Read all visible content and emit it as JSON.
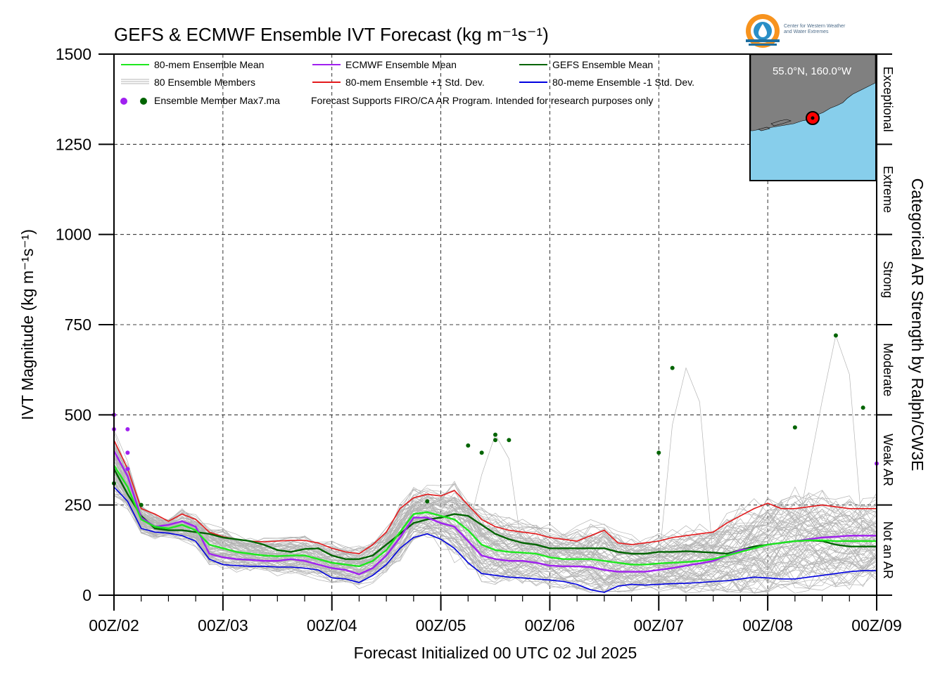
{
  "title": "GEFS & ECMWF Ensemble IVT Forecast (kg m⁻¹s⁻¹)",
  "logo_text_line1": "Center for Western Weather",
  "logo_text_line2": "and Water Extremes",
  "location_label": "55.0°N, 160.0°W",
  "legend": {
    "mean80": "80-mem Ensemble Mean",
    "ecmwf_mean": "ECMWF Ensemble Mean",
    "gefs_mean": "GEFS Ensemble Mean",
    "members": "80 Ensemble Members",
    "plus1sd": "80-mem Ensemble +1 Std. Dev.",
    "minus1sd": "80-meme Ensemble -1 Std. Dev.",
    "max_label": "Ensemble Member Max7.ma",
    "note": "Forecast Supports FIRO/CA AR Program. Intended for research purposes only"
  },
  "colors": {
    "mean80": "#1ee81e",
    "ecmwf": "#a020f0",
    "gefs": "#006400",
    "plus": "#e41a1c",
    "minus": "#0000e0",
    "members": "#b4b4b4",
    "ocean": "#87ceeb",
    "land": "#808080"
  },
  "chart_data": {
    "type": "line",
    "xlabel": "Forecast Initialized 00 UTC 02 Jul 2025",
    "ylabel": "IVT Magnitude (kg m⁻¹s⁻¹)",
    "right_label": "Categorical AR Strength by Ralph/CW3E",
    "ylim": [
      0,
      1500
    ],
    "xlim": [
      0,
      168
    ],
    "yticks": [
      0,
      250,
      500,
      750,
      1000,
      1250,
      1500
    ],
    "xticks": [
      0,
      24,
      48,
      72,
      96,
      120,
      144,
      168
    ],
    "xtick_labels": [
      "00Z/02",
      "00Z/03",
      "00Z/04",
      "00Z/05",
      "00Z/06",
      "00Z/07",
      "00Z/08",
      "00Z/09"
    ],
    "categories": [
      {
        "label": "Not an AR",
        "range": [
          0,
          250
        ]
      },
      {
        "label": "Weak AR",
        "range": [
          250,
          500
        ]
      },
      {
        "label": "Moderate",
        "range": [
          500,
          750
        ]
      },
      {
        "label": "Strong",
        "range": [
          750,
          1000
        ]
      },
      {
        "label": "Extreme",
        "range": [
          1000,
          1250
        ]
      },
      {
        "label": "Exceptional",
        "range": [
          1250,
          1500
        ]
      }
    ],
    "grid": true,
    "x": [
      0,
      3,
      6,
      9,
      12,
      15,
      18,
      21,
      24,
      27,
      30,
      33,
      36,
      39,
      42,
      45,
      48,
      51,
      54,
      57,
      60,
      63,
      66,
      69,
      72,
      75,
      78,
      81,
      84,
      87,
      90,
      93,
      96,
      99,
      102,
      105,
      108,
      111,
      114,
      117,
      120,
      123,
      126,
      129,
      132,
      135,
      138,
      141,
      144,
      147,
      150,
      153,
      156,
      159,
      162,
      165,
      168
    ],
    "series": [
      {
        "name": "80-mem Ensemble +1 Std. Dev.",
        "key": "plus",
        "values": [
          430,
          350,
          240,
          225,
          205,
          225,
          210,
          175,
          162,
          155,
          150,
          148,
          150,
          152,
          152,
          145,
          130,
          120,
          115,
          140,
          175,
          240,
          270,
          280,
          275,
          290,
          250,
          210,
          190,
          180,
          175,
          170,
          160,
          155,
          150,
          165,
          180,
          145,
          140,
          145,
          150,
          160,
          165,
          170,
          175,
          200,
          220,
          240,
          255,
          240,
          240,
          245,
          250,
          245,
          240,
          240,
          240
        ]
      },
      {
        "name": "GEFS Ensemble Mean",
        "key": "gefs",
        "values": [
          350,
          280,
          220,
          185,
          180,
          180,
          175,
          170,
          160,
          155,
          150,
          140,
          125,
          120,
          128,
          130,
          110,
          100,
          100,
          110,
          140,
          170,
          200,
          210,
          215,
          225,
          220,
          195,
          170,
          155,
          145,
          140,
          130,
          130,
          130,
          130,
          130,
          120,
          115,
          115,
          120,
          120,
          122,
          120,
          118,
          115,
          125,
          135,
          140,
          145,
          150,
          152,
          150,
          140,
          135,
          135,
          135
        ]
      },
      {
        "name": "80-mem Ensemble Mean",
        "key": "mean80",
        "values": [
          360,
          300,
          210,
          190,
          185,
          195,
          180,
          140,
          130,
          120,
          115,
          110,
          108,
          110,
          110,
          100,
          90,
          85,
          80,
          95,
          125,
          175,
          225,
          230,
          220,
          210,
          180,
          140,
          125,
          120,
          118,
          115,
          105,
          100,
          100,
          100,
          95,
          90,
          85,
          85,
          88,
          90,
          92,
          95,
          100,
          110,
          120,
          130,
          140,
          145,
          150,
          152,
          152,
          150,
          150,
          150,
          150
        ]
      },
      {
        "name": "ECMWF Ensemble Mean",
        "key": "ecmwf",
        "values": [
          400,
          330,
          215,
          190,
          195,
          205,
          190,
          115,
          105,
          100,
          98,
          95,
          95,
          100,
          95,
          85,
          75,
          70,
          58,
          75,
          110,
          160,
          215,
          215,
          200,
          190,
          150,
          110,
          100,
          95,
          95,
          90,
          82,
          80,
          80,
          78,
          70,
          65,
          65,
          65,
          70,
          75,
          82,
          88,
          95,
          110,
          125,
          130,
          140,
          145,
          150,
          155,
          160,
          162,
          165,
          165,
          165
        ]
      },
      {
        "name": "80-meme Ensemble -1 Std. Dev.",
        "key": "minus",
        "values": [
          300,
          260,
          185,
          175,
          172,
          165,
          150,
          100,
          85,
          82,
          80,
          80,
          78,
          78,
          75,
          70,
          48,
          45,
          35,
          55,
          85,
          130,
          160,
          170,
          155,
          130,
          90,
          60,
          55,
          50,
          48,
          45,
          42,
          38,
          30,
          15,
          8,
          25,
          30,
          28,
          30,
          32,
          33,
          35,
          38,
          40,
          45,
          50,
          48,
          45,
          45,
          50,
          55,
          60,
          65,
          68,
          68
        ]
      }
    ],
    "members_summary": {
      "count": 80,
      "note": "gray individual member traces"
    },
    "max_points": [
      {
        "model": "ECMWF",
        "x": 0,
        "y": 500
      },
      {
        "model": "ECMWF",
        "x": 0,
        "y": 460
      },
      {
        "model": "ECMWF",
        "x": 3,
        "y": 460
      },
      {
        "model": "ECMWF",
        "x": 3,
        "y": 395
      },
      {
        "model": "ECMWF",
        "x": 3,
        "y": 350
      },
      {
        "model": "ECMWF",
        "x": 168,
        "y": 365
      },
      {
        "model": "GEFS",
        "x": 0,
        "y": 310
      },
      {
        "model": "GEFS",
        "x": 6,
        "y": 250
      },
      {
        "model": "GEFS",
        "x": 69,
        "y": 260
      },
      {
        "model": "GEFS",
        "x": 78,
        "y": 415
      },
      {
        "model": "GEFS",
        "x": 81,
        "y": 395
      },
      {
        "model": "GEFS",
        "x": 84,
        "y": 445
      },
      {
        "model": "GEFS",
        "x": 84,
        "y": 430
      },
      {
        "model": "GEFS",
        "x": 87,
        "y": 430
      },
      {
        "model": "GEFS",
        "x": 120,
        "y": 395
      },
      {
        "model": "GEFS",
        "x": 123,
        "y": 630
      },
      {
        "model": "GEFS",
        "x": 150,
        "y": 465
      },
      {
        "model": "GEFS",
        "x": 159,
        "y": 720
      },
      {
        "model": "GEFS",
        "x": 165,
        "y": 520
      }
    ]
  }
}
